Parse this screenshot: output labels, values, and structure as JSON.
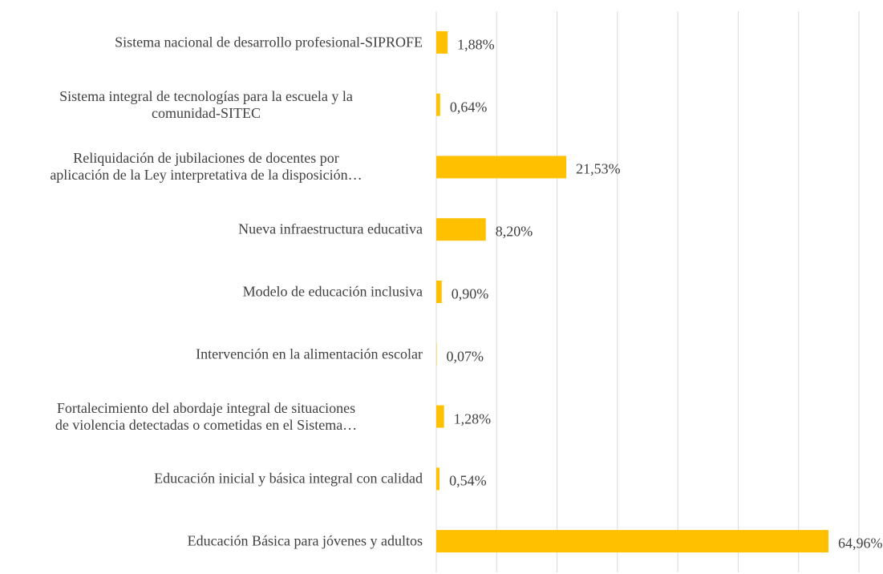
{
  "chart_data": {
    "type": "bar",
    "orientation": "horizontal",
    "categories": [
      "Sistema nacional de desarrollo profesional-SIPROFE",
      "Sistema integral de tecnologías para la escuela y la\ncomunidad-SITEC",
      "Reliquidación de jubilaciones de docentes por\naplicación de la Ley interpretativa de la disposición…",
      "Nueva infraestructura educativa",
      "Modelo de educación inclusiva",
      "Intervención en la alimentación escolar",
      "Fortalecimiento del abordaje integral de situaciones\nde violencia detectadas o cometidas en el Sistema…",
      "Educación inicial y básica integral con calidad",
      "Educación Básica para jóvenes y adultos"
    ],
    "values": [
      1.88,
      0.64,
      21.53,
      8.2,
      0.9,
      0.07,
      1.28,
      0.54,
      64.96
    ],
    "value_labels": [
      "1,88%",
      "0,64%",
      "21,53%",
      "8,20%",
      "0,90%",
      "0,07%",
      "1,28%",
      "0,54%",
      "64,96%"
    ],
    "color": "#ffc000",
    "xlim": [
      0,
      70
    ],
    "xticks": [
      0,
      10,
      20,
      30,
      40,
      50,
      60,
      70
    ],
    "grid": true
  }
}
